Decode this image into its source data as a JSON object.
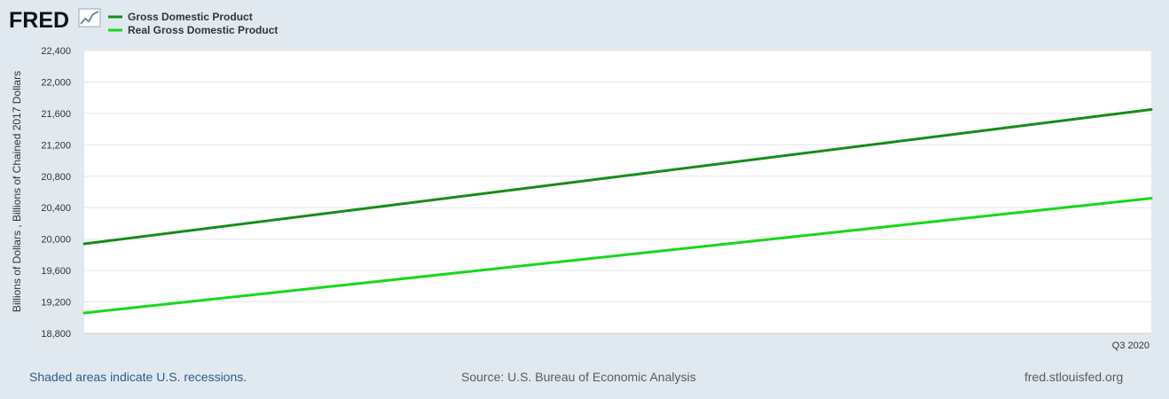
{
  "brand": {
    "logo_text": "FRED",
    "logo_icon": "line-chart-icon"
  },
  "colors": {
    "background": "#e1e9f0",
    "plot_background": "#ffffff",
    "gridline": "#e6e6e6",
    "series_gdp": "#168c17",
    "series_real_gdp": "#17d817",
    "footer_link": "#2e5a88",
    "footer_text": "#5a5a5a"
  },
  "chart_data": {
    "type": "line",
    "title": "",
    "ylabel": "Billions of Dollars , Billions of Chained 2017 Dollars",
    "xlabel": "",
    "ylim": [
      18800,
      22400
    ],
    "yticks": [
      18800,
      19200,
      19600,
      20000,
      20400,
      20800,
      21200,
      21600,
      22000,
      22400
    ],
    "ytick_labels": [
      "18,800",
      "19,200",
      "19,600",
      "20,000",
      "20,400",
      "20,800",
      "21,200",
      "21,600",
      "22,000",
      "22,400"
    ],
    "xtick_labels": [
      "Q3 2020"
    ],
    "grid": true,
    "legend_position": "top-left",
    "series": [
      {
        "name": "Gross Domestic Product",
        "color": "#168c17",
        "start": 19940,
        "end": 21650
      },
      {
        "name": "Real Gross Domestic Product",
        "color": "#17d817",
        "start": 19060,
        "end": 20520
      }
    ]
  },
  "footer": {
    "recession_note": "Shaded areas indicate U.S. recessions.",
    "source": "Source: U.S. Bureau of Economic Analysis",
    "site": "fred.stlouisfed.org"
  }
}
